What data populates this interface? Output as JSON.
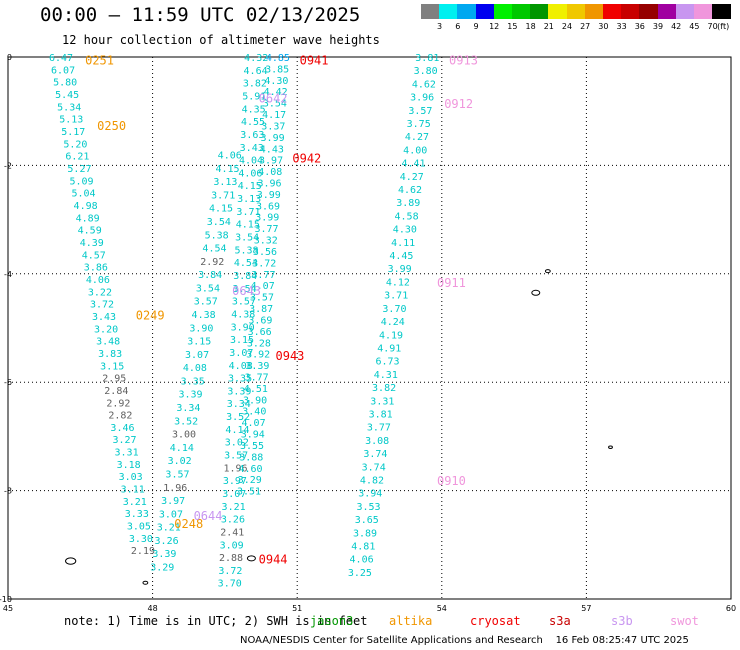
{
  "title": "00:00 – 11:59 UTC 02/13/2025",
  "subtitle": "12 hour collection of altimeter wave heights",
  "colorbar": {
    "unit": "(ft)",
    "levels": [
      {
        "label": "3",
        "color": "#808080"
      },
      {
        "label": "6",
        "color": "#00f0f0"
      },
      {
        "label": "9",
        "color": "#00a8f0"
      },
      {
        "label": "12",
        "color": "#0000f0"
      },
      {
        "label": "15",
        "color": "#00f000"
      },
      {
        "label": "18",
        "color": "#00c800"
      },
      {
        "label": "21",
        "color": "#009600"
      },
      {
        "label": "24",
        "color": "#f0f000"
      },
      {
        "label": "27",
        "color": "#f0c800"
      },
      {
        "label": "30",
        "color": "#f09600"
      },
      {
        "label": "33",
        "color": "#f00000"
      },
      {
        "label": "36",
        "color": "#c80000"
      },
      {
        "label": "39",
        "color": "#960000"
      },
      {
        "label": "42",
        "color": "#a000a0"
      },
      {
        "label": "45",
        "color": "#c896f0"
      },
      {
        "label": "70",
        "color": "#f096dc"
      },
      {
        "label": "",
        "color": "#000000"
      }
    ]
  },
  "map_data": {
    "lon_range": [
      45,
      60
    ],
    "lat_range": [
      -10,
      0
    ],
    "lon_ticks": [
      "45",
      "48",
      "51",
      "54",
      "57",
      "60"
    ],
    "lat_ticks": [
      "0",
      "-2",
      "-4",
      "-6",
      "-8",
      "-10"
    ],
    "grid": true,
    "passes": [
      {
        "label": "0251",
        "color": "#f09600",
        "lon": 46.6,
        "lat": -0.05
      },
      {
        "label": "0250",
        "color": "#f09600",
        "lon": 46.85,
        "lat": -1.25
      },
      {
        "label": "0249",
        "color": "#f09600",
        "lon": 47.65,
        "lat": -4.75
      },
      {
        "label": "0248",
        "color": "#f09600",
        "lon": 48.45,
        "lat": -8.6
      },
      {
        "label": "0941",
        "color": "#f00000",
        "lon": 51.05,
        "lat": -0.05
      },
      {
        "label": "0942",
        "color": "#f00000",
        "lon": 50.9,
        "lat": -1.85
      },
      {
        "label": "0943",
        "color": "#f00000",
        "lon": 50.55,
        "lat": -5.5
      },
      {
        "label": "0944",
        "color": "#f00000",
        "lon": 50.2,
        "lat": -9.25
      },
      {
        "label": "0913",
        "color": "#f096dc",
        "lon": 54.15,
        "lat": -0.05
      },
      {
        "label": "0912",
        "color": "#f096dc",
        "lon": 54.05,
        "lat": -0.85
      },
      {
        "label": "0911",
        "color": "#f096dc",
        "lon": 53.9,
        "lat": -4.15
      },
      {
        "label": "0910",
        "color": "#f096dc",
        "lon": 53.9,
        "lat": -7.8
      },
      {
        "label": "0642",
        "color": "#c896f0",
        "lon": 50.2,
        "lat": -0.75
      },
      {
        "label": "0643",
        "color": "#c896f0",
        "lon": 49.65,
        "lat": -4.3
      },
      {
        "label": "0644",
        "color": "#c896f0",
        "lon": 48.85,
        "lat": -8.45
      }
    ],
    "tracks": [
      {
        "start_lon": 46.1,
        "start_lat": 0.0,
        "end_lon": 47.8,
        "end_lat": -9.1,
        "values": [
          "6.47",
          "6.07",
          "5.80",
          "5.45",
          "5.34",
          "5.13",
          "5.17",
          "5.20",
          "6.21",
          "5.27",
          "5.09",
          "5.04",
          "4.98",
          "4.89",
          "4.59",
          "4.39",
          "4.57",
          "3.86",
          "4.06",
          "3.22",
          "3.72",
          "3.43",
          "3.20",
          "3.48",
          "3.83",
          "3.15",
          "2.95",
          "2.84",
          "2.92",
          "2.82",
          "3.46",
          "3.27",
          "3.31",
          "3.18",
          "3.03",
          "3.11",
          "3.21",
          "3.33",
          "3.05",
          "3.30",
          "2.19"
        ],
        "colors": [
          "#00c8c8",
          "#00c8c8",
          "#00c8c8",
          "#00c8c8",
          "#00c8c8",
          "#00c8c8",
          "#00c8c8",
          "#00c8c8",
          "#00c8c8",
          "#00c8c8",
          "#00c8c8",
          "#00c8c8",
          "#00c8c8",
          "#00c8c8",
          "#00c8c8",
          "#00c8c8",
          "#00c8c8",
          "#00c8c8",
          "#00c8c8",
          "#00c8c8",
          "#00c8c8",
          "#00c8c8",
          "#00c8c8",
          "#00c8c8",
          "#00c8c8",
          "#00c8c8",
          "#606060",
          "#606060",
          "#606060",
          "#606060",
          "#00c8c8",
          "#00c8c8",
          "#00c8c8",
          "#00c8c8",
          "#00c8c8",
          "#00c8c8",
          "#00c8c8",
          "#00c8c8",
          "#00c8c8",
          "#00c8c8",
          "#606060"
        ]
      },
      {
        "start_lon": 49.6,
        "start_lat": -1.8,
        "end_lon": 48.2,
        "end_lat": -9.4,
        "values": [
          "4.06",
          "4.15",
          "3.13",
          "3.71",
          "4.15",
          "3.54",
          "5.38",
          "4.54",
          "2.92",
          "3.84",
          "3.54",
          "3.57",
          "4.38",
          "3.90",
          "3.15",
          "3.07",
          "4.08",
          "3.35",
          "3.39",
          "3.34",
          "3.52",
          "3.00",
          "4.14",
          "3.02",
          "3.57",
          "1.96",
          "3.97",
          "3.07",
          "3.21",
          "3.26",
          "3.39",
          "3.29"
        ],
        "colors": [
          "#00c8c8",
          "#00c8c8",
          "#00c8c8",
          "#00c8c8",
          "#00c8c8",
          "#00c8c8",
          "#00c8c8",
          "#00c8c8",
          "#606060",
          "#00c8c8",
          "#00c8c8",
          "#00c8c8",
          "#00c8c8",
          "#00c8c8",
          "#00c8c8",
          "#00c8c8",
          "#00c8c8",
          "#00c8c8",
          "#00c8c8",
          "#00c8c8",
          "#00c8c8",
          "#606060",
          "#00c8c8",
          "#00c8c8",
          "#00c8c8",
          "#606060",
          "#00c8c8",
          "#00c8c8",
          "#00c8c8",
          "#00c8c8",
          "#00c8c8",
          "#00c8c8"
        ]
      },
      {
        "start_lon": 50.15,
        "start_lat": 0.0,
        "end_lon": 49.6,
        "end_lat": -9.7,
        "values": [
          "4.32",
          "4.64",
          "3.82",
          "5.91",
          "4.35",
          "4.55",
          "3.63",
          "3.43",
          "4.04",
          "4.06",
          "4.15",
          "3.13",
          "3.71",
          "4.15",
          "3.54",
          "5.38",
          "4.54",
          "3.84",
          "3.54",
          "3.57",
          "4.38",
          "3.90",
          "3.15",
          "3.07",
          "4.08",
          "3.35",
          "3.39",
          "3.34",
          "3.52",
          "4.14",
          "3.02",
          "3.57",
          "1.96",
          "3.97",
          "3.07",
          "3.21",
          "3.26",
          "2.41",
          "3.09",
          "2.88",
          "3.72",
          "3.70"
        ],
        "colors": [
          "#00c8c8",
          "#00c8c8",
          "#00c8c8",
          "#00c8c8",
          "#00c8c8",
          "#00c8c8",
          "#00c8c8",
          "#00c8c8",
          "#00c8c8",
          "#00c8c8",
          "#00c8c8",
          "#00c8c8",
          "#00c8c8",
          "#00c8c8",
          "#00c8c8",
          "#00c8c8",
          "#00c8c8",
          "#00c8c8",
          "#00c8c8",
          "#00c8c8",
          "#00c8c8",
          "#00c8c8",
          "#00c8c8",
          "#00c8c8",
          "#00c8c8",
          "#00c8c8",
          "#00c8c8",
          "#00c8c8",
          "#00c8c8",
          "#00c8c8",
          "#00c8c8",
          "#00c8c8",
          "#606060",
          "#00c8c8",
          "#00c8c8",
          "#00c8c8",
          "#00c8c8",
          "#606060",
          "#00c8c8",
          "#606060",
          "#00c8c8",
          "#00c8c8"
        ]
      },
      {
        "start_lon": 50.6,
        "start_lat": 0.0,
        "end_lon": 50.0,
        "end_lat": -8.0,
        "values": [
          "4.85",
          "3.85",
          "4.30",
          "4.42",
          "3.54",
          "4.17",
          "3.37",
          "3.99",
          "4.43",
          "3.97",
          "4.08",
          "3.96",
          "3.99",
          "3.69",
          "3.99",
          "3.77",
          "3.32",
          "3.56",
          "3.72",
          "3.77",
          "4.07",
          "3.57",
          "3.87",
          "3.69",
          "3.66",
          "3.28",
          "3.92",
          "3.39",
          "3.77",
          "4.51",
          "3.90",
          "3.40",
          "4.07",
          "3.94",
          "3.55",
          "3.88",
          "4.60",
          "3.29",
          "3.51"
        ],
        "colors": [
          "#00a8f0",
          "#00c8c8",
          "#00c8c8",
          "#00c8c8",
          "#00c8c8",
          "#00c8c8",
          "#00c8c8",
          "#00c8c8",
          "#00c8c8",
          "#00c8c8",
          "#00c8c8",
          "#00c8c8",
          "#00c8c8",
          "#00c8c8",
          "#00c8c8",
          "#00c8c8",
          "#00c8c8",
          "#00c8c8",
          "#00c8c8",
          "#00c8c8",
          "#00c8c8",
          "#00c8c8",
          "#00c8c8",
          "#00c8c8",
          "#00c8c8",
          "#00c8c8",
          "#00c8c8",
          "#00c8c8",
          "#00c8c8",
          "#00c8c8",
          "#00c8c8",
          "#00c8c8",
          "#00c8c8",
          "#00c8c8",
          "#00c8c8",
          "#00c8c8",
          "#00c8c8",
          "#00c8c8",
          "#00c8c8"
        ]
      },
      {
        "start_lon": 53.7,
        "start_lat": 0.0,
        "end_lon": 52.3,
        "end_lat": -9.5,
        "values": [
          "3.81",
          "3.80",
          "4.62",
          "3.96",
          "3.57",
          "3.75",
          "4.27",
          "4.00",
          "4.41",
          "4.27",
          "4.62",
          "3.89",
          "4.58",
          "4.30",
          "4.11",
          "4.45",
          "3.99",
          "4.12",
          "3.71",
          "3.70",
          "4.24",
          "4.19",
          "4.91",
          "6.73",
          "4.31",
          "3.82",
          "3.31",
          "3.81",
          "3.77",
          "3.08",
          "3.74",
          "3.74",
          "4.82",
          "3.94",
          "3.53",
          "3.65",
          "3.89",
          "4.81",
          "4.06",
          "3.25"
        ],
        "colors": [
          "#00c8c8",
          "#00c8c8",
          "#00c8c8",
          "#00c8c8",
          "#00c8c8",
          "#00c8c8",
          "#00c8c8",
          "#00c8c8",
          "#00c8c8",
          "#00c8c8",
          "#00c8c8",
          "#00c8c8",
          "#00c8c8",
          "#00c8c8",
          "#00c8c8",
          "#00c8c8",
          "#00c8c8",
          "#00c8c8",
          "#00c8c8",
          "#00c8c8",
          "#00c8c8",
          "#00c8c8",
          "#00c8c8",
          "#00c8c8",
          "#00c8c8",
          "#00c8c8",
          "#00c8c8",
          "#00c8c8",
          "#00c8c8",
          "#00c8c8",
          "#00c8c8",
          "#00c8c8",
          "#00c8c8",
          "#00c8c8",
          "#00c8c8",
          "#00c8c8",
          "#00c8c8",
          "#00c8c8",
          "#00c8c8",
          "#00c8c8"
        ]
      }
    ]
  },
  "note": "note: 1) Time is in UTC; 2) SWH is in feet",
  "satellites": [
    {
      "label": "jason3",
      "color": "#009600"
    },
    {
      "label": "altika",
      "color": "#f09600"
    },
    {
      "label": "cryosat",
      "color": "#f00000"
    },
    {
      "label": "s3a",
      "color": "#c80000"
    },
    {
      "label": "s3b",
      "color": "#c896f0"
    },
    {
      "label": "swot",
      "color": "#f096dc"
    }
  ],
  "footer": "NOAA/NESDIS Center for Satellite Applications and Research    16 Feb 08:25:47 UTC 2025"
}
